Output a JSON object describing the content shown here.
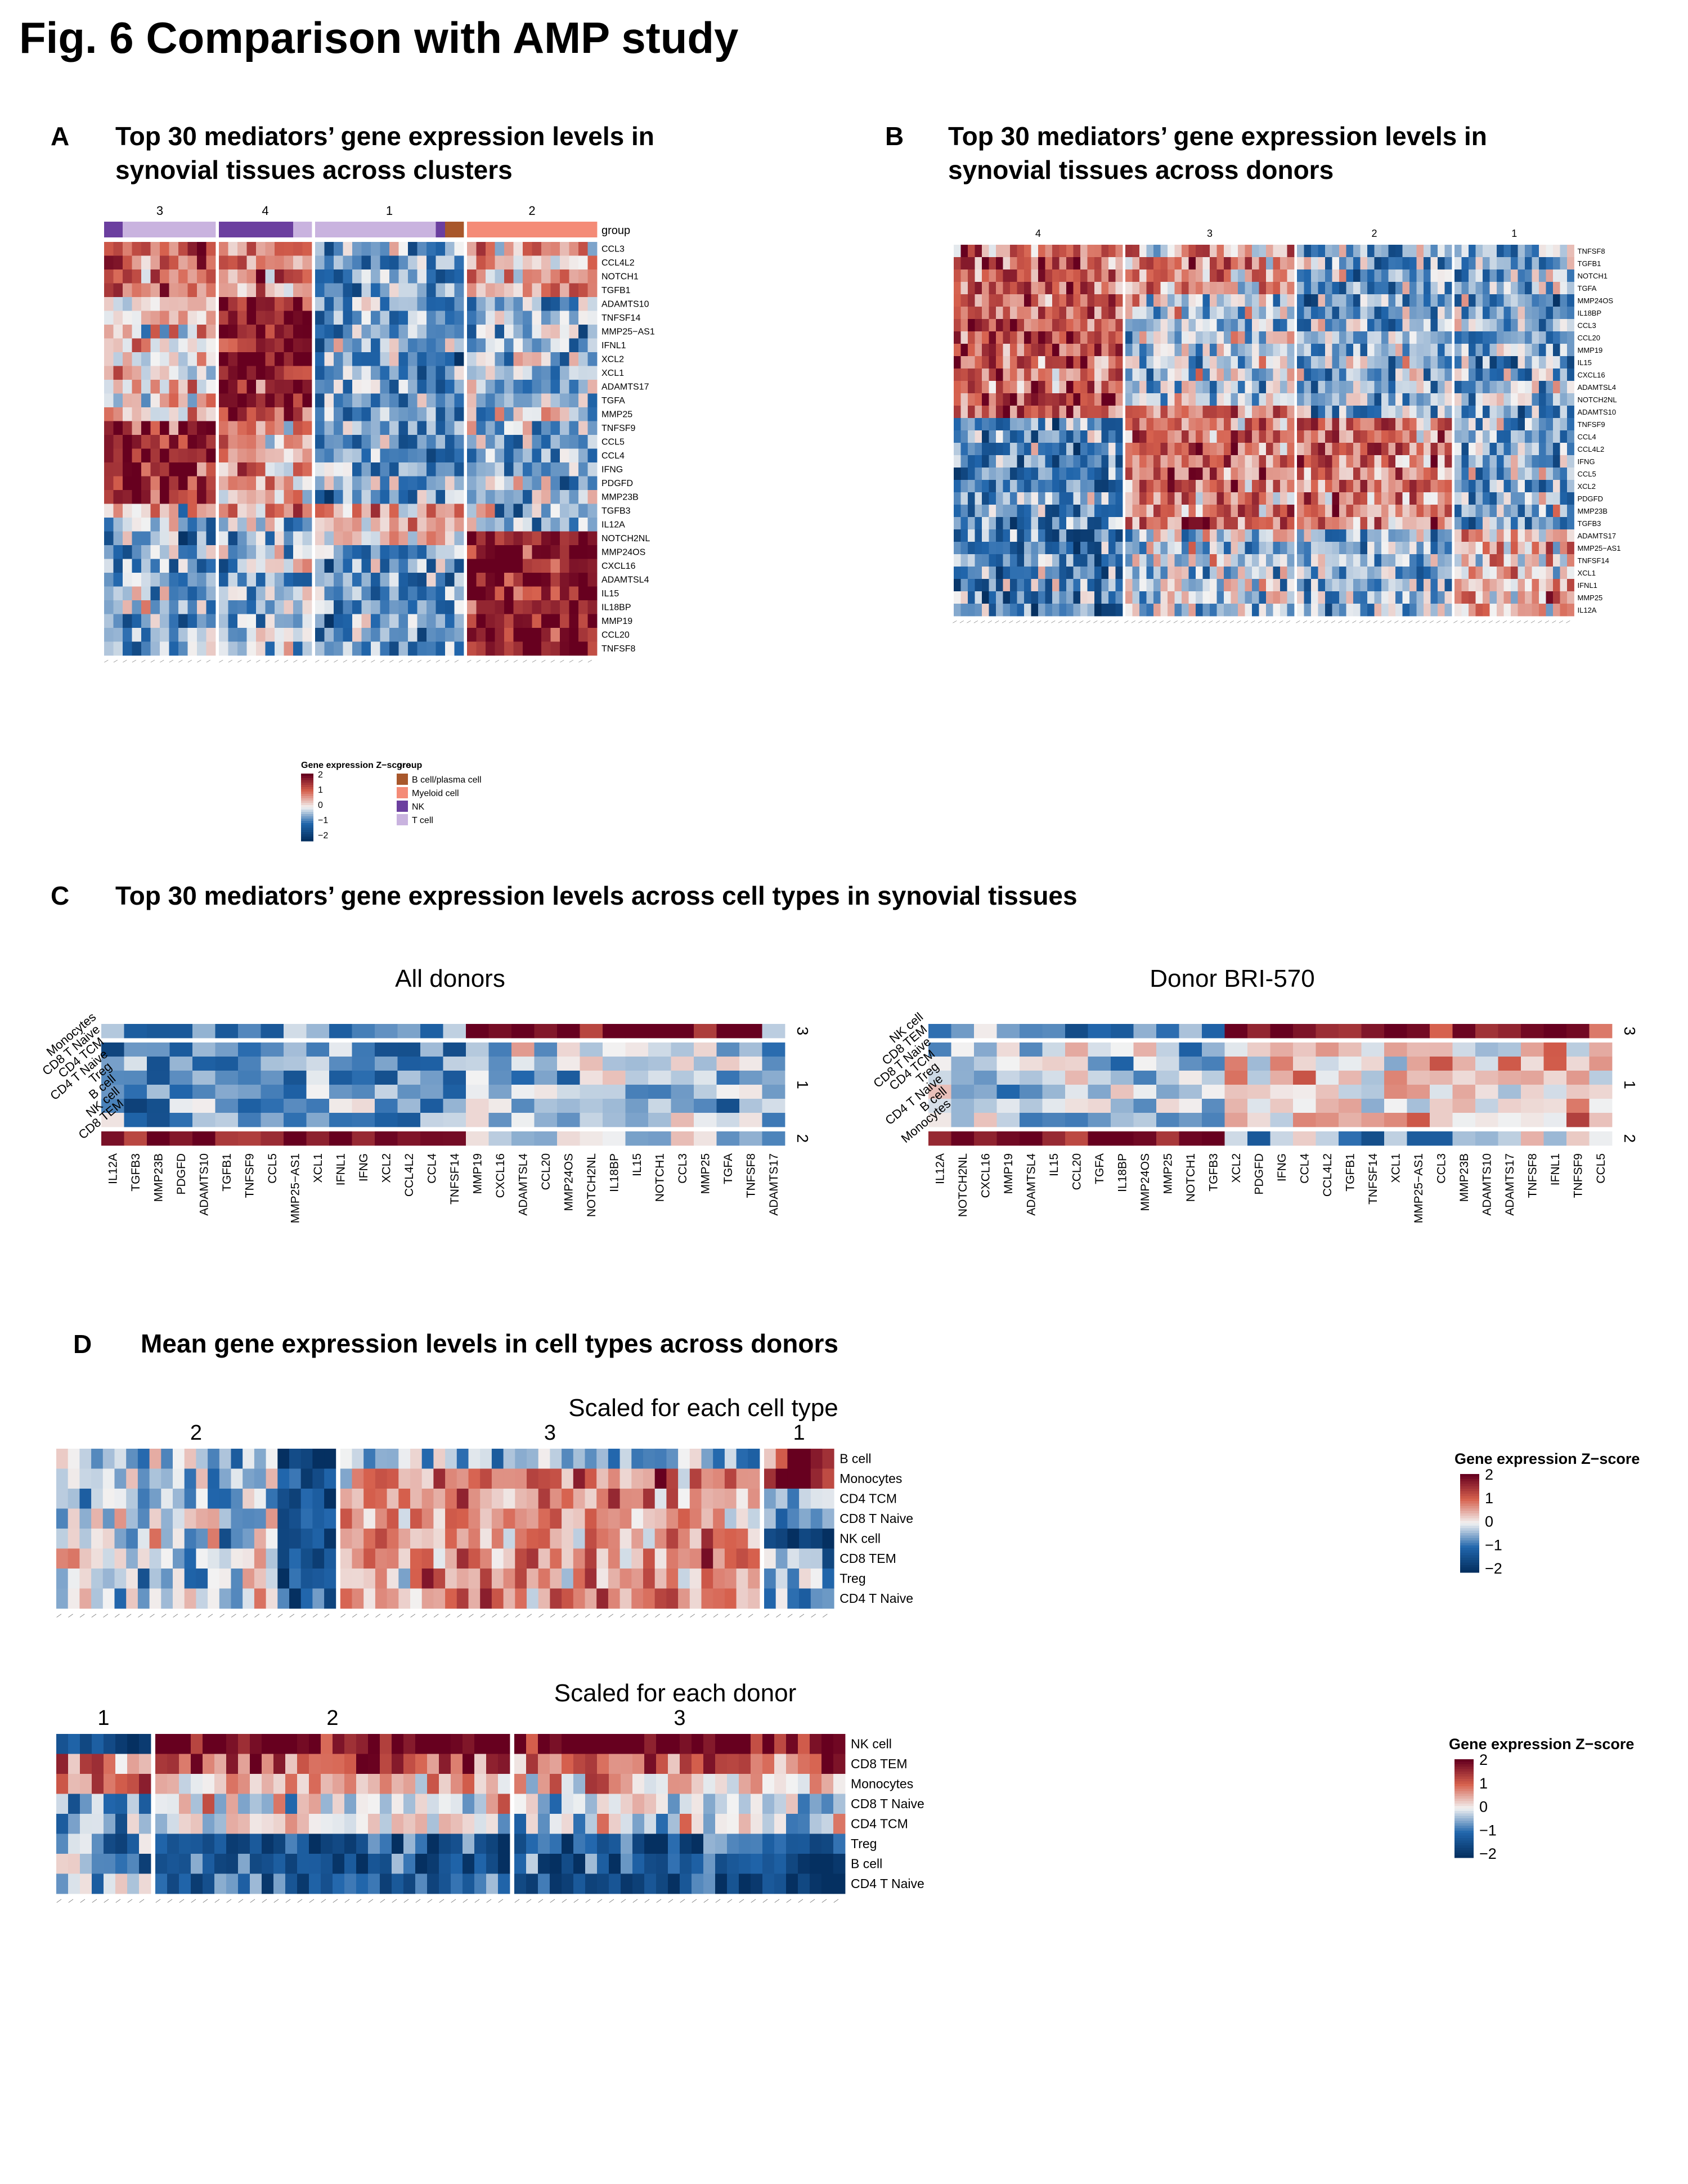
{
  "figure": {
    "title": "Fig. 6  Comparison with AMP study"
  },
  "colors": {
    "low": "#053061",
    "mid": "#f2f2f2",
    "high": "#67001f",
    "group_bcell": "#a8572b",
    "group_myeloid": "#f48b77",
    "group_nk": "#6b3f9f",
    "group_tcell": "#c9b3df"
  },
  "panel_a": {
    "letter": "A",
    "title_line1": "Top 30 mediators’ gene expression levels in",
    "title_line2": "synovial tissues across clusters",
    "cluster_labels": [
      "3",
      "4",
      "1",
      "2"
    ],
    "group_label": "group",
    "genes": [
      "CCL3",
      "CCL4L2",
      "NOTCH1",
      "TGFB1",
      "ADAMTS10",
      "TNFSF14",
      "MMP25−AS1",
      "IFNL1",
      "XCL2",
      "XCL1",
      "ADAMTS17",
      "TGFA",
      "MMP25",
      "TNFSF9",
      "CCL5",
      "CCL4",
      "IFNG",
      "PDGFD",
      "MMP23B",
      "TGFB3",
      "IL12A",
      "NOTCH2NL",
      "MMP24OS",
      "CXCL16",
      "ADAMTSL4",
      "IL15",
      "IL18BP",
      "MMP19",
      "CCL20",
      "TNFSF8"
    ],
    "legend": {
      "title": "Gene expression Z−score",
      "ticks": [
        "2",
        "1",
        "0",
        "−1",
        "−2"
      ],
      "group_title": "group",
      "groups": [
        "B cell/plasma cell",
        "Myeloid cell",
        "NK",
        "T cell"
      ]
    }
  },
  "panel_b": {
    "letter": "B",
    "title_line1": "Top 30 mediators’ gene expression levels in",
    "title_line2": "synovial tissues across donors",
    "cluster_labels": [
      "4",
      "3",
      "2",
      "1"
    ],
    "genes": [
      "TNFSF8",
      "TGFB1",
      "NOTCH1",
      "TGFA",
      "MMP24OS",
      "IL18BP",
      "CCL3",
      "CCL20",
      "MMP19",
      "IL15",
      "CXCL16",
      "ADAMTSL4",
      "NOTCH2NL",
      "ADAMTS10",
      "TNFSF9",
      "CCL4",
      "CCL4L2",
      "IFNG",
      "CCL5",
      "XCL2",
      "PDGFD",
      "MMP23B",
      "TGFB3",
      "ADAMTS17",
      "MMP25−AS1",
      "TNFSF14",
      "XCL1",
      "IFNL1",
      "MMP25",
      "IL12A"
    ]
  },
  "panel_c": {
    "letter": "C",
    "title": "Top 30 mediators’ gene expression levels across cell types in synovial tissues",
    "left": {
      "subtitle": "All donors",
      "row_labels": [
        "Monocytes",
        "CD8 T Naive",
        "CD4 TCM",
        "CD4 T Naive",
        "Treg",
        "B cell",
        "NK cell",
        "CD8 TEM"
      ],
      "row_clusters": [
        "3",
        "1",
        "2"
      ],
      "genes": [
        "IL12A",
        "TGFB3",
        "MMP23B",
        "PDGFD",
        "ADAMTS10",
        "TGFB1",
        "TNFSF9",
        "CCL5",
        "MMP25−AS1",
        "XCL1",
        "IFNL1",
        "IFNG",
        "XCL2",
        "CCL4L2",
        "CCL4",
        "TNFSF14",
        "MMP19",
        "CXCL16",
        "ADAMTSL4",
        "CCL20",
        "MMP24OS",
        "NOTCH2NL",
        "IL18BP",
        "IL15",
        "NOTCH1",
        "CCL3",
        "MMP25",
        "TGFA",
        "TNFSF8",
        "ADAMTS17"
      ]
    },
    "right": {
      "subtitle": "Donor BRI-570",
      "row_labels": [
        "NK cell",
        "CD8 TEM",
        "CD8 T Naive",
        "CD4 TCM",
        "Treg",
        "CD4 T Naive",
        "B cell",
        "Monocytes"
      ],
      "row_clusters": [
        "3",
        "1",
        "2"
      ],
      "genes": [
        "IL12A",
        "NOTCH2NL",
        "CXCL16",
        "MMP19",
        "ADAMTSL4",
        "IL15",
        "CCL20",
        "TGFA",
        "IL18BP",
        "MMP24OS",
        "MMP25",
        "NOTCH1",
        "TGFB3",
        "XCL2",
        "PDGFD",
        "IFNG",
        "CCL4",
        "CCL4L2",
        "TGFB1",
        "TNFSF14",
        "XCL1",
        "MMP25−AS1",
        "CCL3",
        "MMP23B",
        "ADAMTS10",
        "ADAMTS17",
        "TNFSF8",
        "IFNL1",
        "TNFSF9",
        "CCL5"
      ]
    }
  },
  "panel_d": {
    "letter": "D",
    "title": "Mean gene expression levels in cell types across donors",
    "top": {
      "subtitle": "Scaled for each cell type",
      "cluster_labels": [
        "2",
        "3",
        "1"
      ],
      "row_labels": [
        "B cell",
        "Monocytes",
        "CD4 TCM",
        "CD8 T Naive",
        "NK cell",
        "CD8 TEM",
        "Treg",
        "CD4 T Naive"
      ],
      "legend_title": "Gene expression Z−score",
      "legend_ticks": [
        "2",
        "1",
        "0",
        "−1",
        "−2"
      ]
    },
    "bottom": {
      "subtitle": "Scaled for each donor",
      "cluster_labels": [
        "1",
        "2",
        "3"
      ],
      "row_labels": [
        "NK cell",
        "CD8 TEM",
        "Monocytes",
        "CD8 T Naive",
        "CD4 TCM",
        "Treg",
        "B cell",
        "CD4 T Naive"
      ],
      "legend_title": "Gene expression Z−score",
      "legend_ticks": [
        "2",
        "1",
        "0",
        "−1",
        "−2"
      ]
    }
  },
  "chart_data": [
    {
      "type": "heatmap",
      "panel": "A",
      "rows": 30,
      "columns_per_cluster": {
        "3": 12,
        "4": 10,
        "1": 16,
        "2": 14
      },
      "zlim": [
        -2,
        2
      ]
    },
    {
      "type": "heatmap",
      "panel": "B",
      "rows": 30,
      "columns_per_cluster": {
        "4": 24,
        "3": 24,
        "2": 22,
        "1": 17
      },
      "zlim": [
        -2,
        2
      ]
    },
    {
      "type": "heatmap",
      "panel": "C-left",
      "rows": 8,
      "columns": 30,
      "zlim": [
        -2,
        2
      ]
    },
    {
      "type": "heatmap",
      "panel": "C-right",
      "rows": 8,
      "columns": 30,
      "zlim": [
        -2,
        2
      ]
    },
    {
      "type": "heatmap",
      "panel": "D-top",
      "rows": 8,
      "columns_per_cluster": {
        "2": 24,
        "3": 36,
        "1": 6
      },
      "zlim": [
        -2,
        2
      ]
    },
    {
      "type": "heatmap",
      "panel": "D-bottom",
      "rows": 8,
      "columns_per_cluster": {
        "1": 8,
        "2": 30,
        "3": 28
      },
      "zlim": [
        -2,
        2
      ]
    }
  ]
}
